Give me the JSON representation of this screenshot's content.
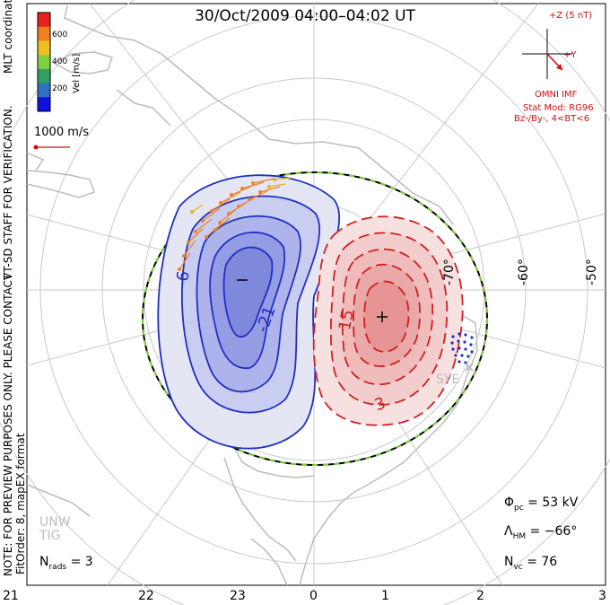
{
  "title": "30/Oct/2009 04:00–04:02 UT",
  "side_notes": {
    "mlt_coordinates": "MLT coordinates",
    "staff_note": "VT-SD STAFF FOR VERIFICATION.",
    "preview_note": "NOTE: FOR PREVIEW PURPOSES ONLY. PLEASE CONTACT",
    "fitorder": "FitOrder: 8, mapEX format"
  },
  "colorbar": {
    "title": "Vel [m/s]",
    "ticks": [
      "600",
      "400",
      "200"
    ],
    "colors": [
      "#e82020",
      "#f08020",
      "#f0c020",
      "#80d040",
      "#30a060",
      "#3070c0",
      "#1010e0"
    ]
  },
  "vector_scale": "1000 m/s",
  "imf": {
    "z_label": "+Z (5 nT)",
    "y_label": "+Y",
    "source": "OMNI IMF",
    "stat_mod": "Stat Mod: RG96",
    "condition": "Bz-/By-, 4<BT<6"
  },
  "latitude_labels": [
    "-50°",
    "-60°",
    "-70°"
  ],
  "mlt_labels": [
    "21",
    "22",
    "23",
    "0",
    "1",
    "2",
    "3"
  ],
  "contour_labels": [
    "-6",
    "-21",
    "15",
    "3"
  ],
  "radar_labels": [
    "SYE",
    "UNW",
    "TIG"
  ],
  "stats": {
    "phi_pc_symbol": "Φ",
    "phi_pc_sub": "pc",
    "phi_pc_value": "= 53 kV",
    "lambda_hm_symbol": "Λ",
    "lambda_hm_sub": "HM",
    "lambda_hm_value": "= −66°",
    "n_vc_symbol": "N",
    "n_vc_sub": "vc",
    "n_vc_value": "= 76",
    "n_rads_symbol": "N",
    "n_rads_sub": "rads",
    "n_rads_value": "= 3"
  },
  "colors": {
    "negative_cell": "#2030c0",
    "positive_cell": "#d02020",
    "grid": "#c8c8c8",
    "coast": "#bcbcbc",
    "hm_boundary_green": "#80d040"
  }
}
